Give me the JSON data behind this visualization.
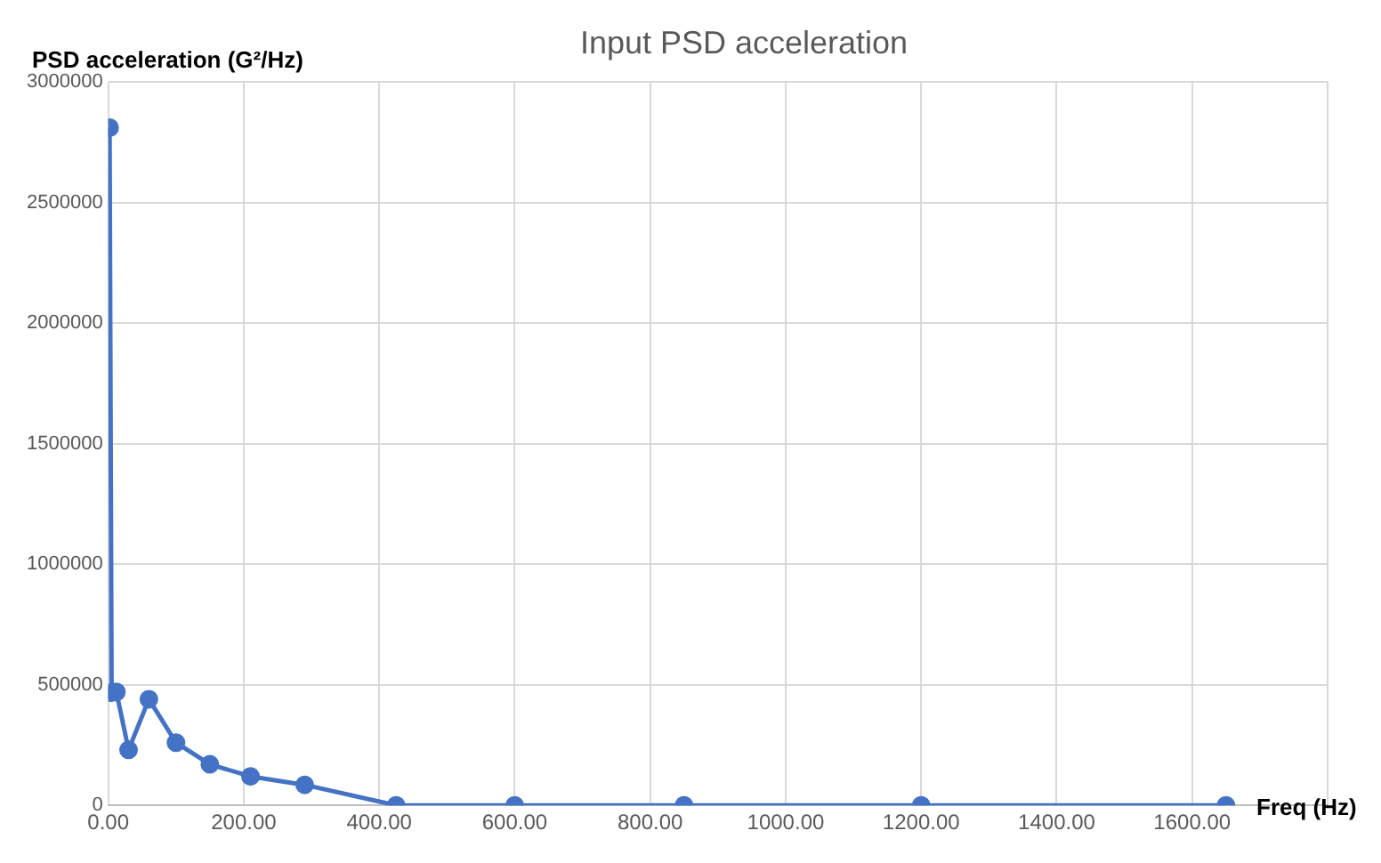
{
  "chart_data": {
    "type": "line",
    "title": "Input PSD acceleration",
    "xlabel": "Freq (Hz)",
    "ylabel": "PSD acceleration (G²/Hz)",
    "x": [
      2,
      5,
      12,
      30,
      60,
      100,
      150,
      210,
      290,
      425,
      600,
      850,
      1200,
      1650
    ],
    "series": [
      {
        "color": "#4472c4",
        "values": [
          2810000,
          467000,
          470000,
          230000,
          440000,
          260000,
          170000,
          120000,
          85000,
          0,
          0,
          0,
          0,
          0
        ]
      }
    ],
    "xlim": [
      0,
      1800
    ],
    "xticks": [
      {
        "value": 0,
        "label": "0.00"
      },
      {
        "value": 200,
        "label": "200.00"
      },
      {
        "value": 400,
        "label": "400.00"
      },
      {
        "value": 600,
        "label": "600.00"
      },
      {
        "value": 800,
        "label": "800.00"
      },
      {
        "value": 1000,
        "label": "1000.00"
      },
      {
        "value": 1200,
        "label": "1200.00"
      },
      {
        "value": 1400,
        "label": "1400.00"
      },
      {
        "value": 1600,
        "label": "1600.00"
      },
      {
        "value": 1800,
        "label": null
      }
    ],
    "ylim": [
      0,
      3000000
    ],
    "yticks": [
      0,
      500000,
      1000000,
      1500000,
      2000000,
      2500000,
      3000000
    ],
    "grid": true,
    "legend": false,
    "marker": "circle",
    "line_style": "solid"
  }
}
